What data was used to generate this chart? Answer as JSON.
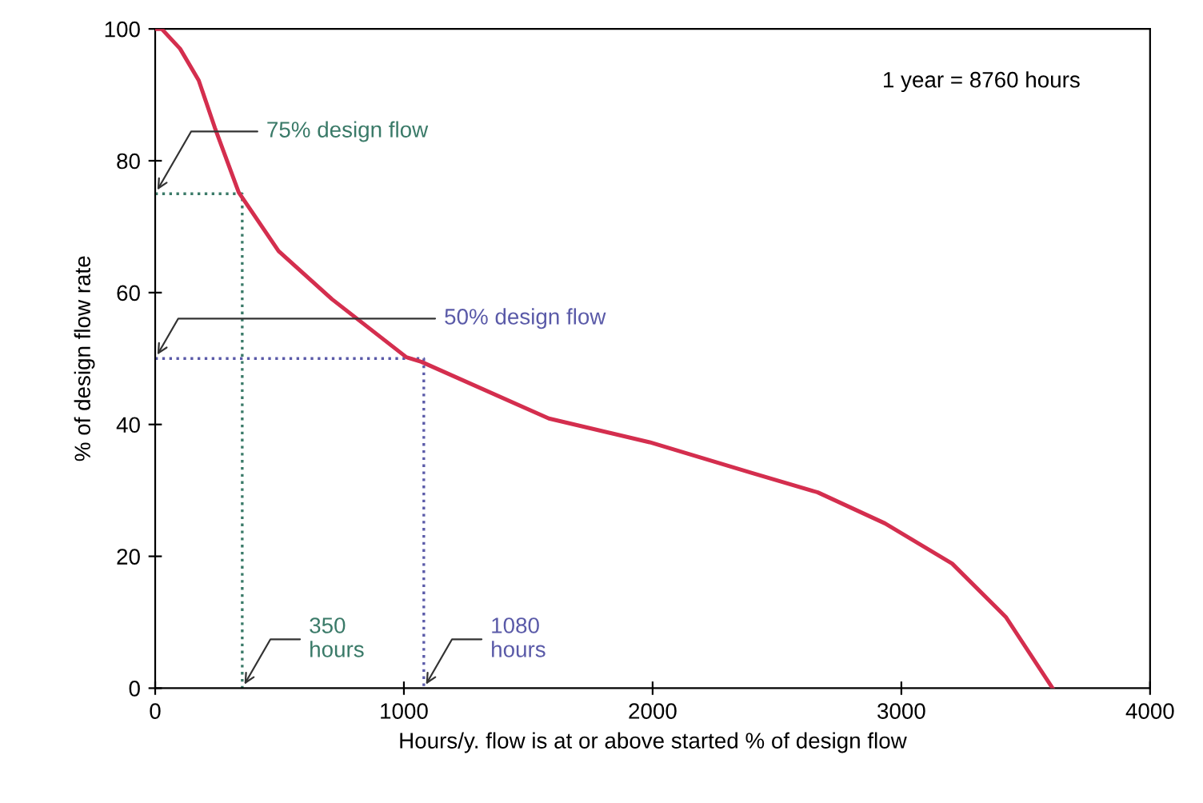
{
  "chart_data": {
    "type": "line",
    "xlabel": "Hours/y. flow is at or above started % of design flow",
    "ylabel": "% of design flow rate",
    "x": [
      0,
      26,
      100,
      175,
      240,
      336,
      496,
      711,
      1010,
      1070,
      1583,
      1988,
      2394,
      2664,
      2934,
      3204,
      3420,
      3608
    ],
    "series": [
      {
        "color": "#d42e4e",
        "values": [
          100,
          100,
          97,
          92.2,
          85,
          75.2,
          66.3,
          59,
          50.2,
          49.5,
          40.9,
          37.3,
          32.7,
          29.7,
          25,
          18.9,
          10.8,
          0
        ]
      },
      {
        "color": "#3a7a68",
        "line_style": "dotted",
        "x": [
          0,
          350,
          350
        ],
        "values": [
          75,
          75,
          0
        ]
      },
      {
        "color": "#5a5aa8",
        "line_style": "dotted",
        "x": [
          0,
          1080,
          1080
        ],
        "values": [
          50,
          50,
          0
        ]
      }
    ],
    "xlim": [
      0,
      4000
    ],
    "xticks": [
      0,
      1000,
      2000,
      3000,
      4000
    ],
    "ylim": [
      0,
      100
    ],
    "yticks": [
      0,
      20,
      40,
      60,
      80,
      100
    ],
    "grid": false,
    "legend": false,
    "marker": "none",
    "line_style": "solid",
    "annotations": [
      {
        "text": "75% design flow",
        "x": 0,
        "y": 75
      },
      {
        "text": "350\nhours",
        "x": 350,
        "y": 0
      },
      {
        "text": "50% design flow",
        "x": 0,
        "y": 50
      },
      {
        "text": "1080\nhours",
        "x": 1080,
        "y": 0
      },
      "1 year = 8760 hours"
    ]
  }
}
